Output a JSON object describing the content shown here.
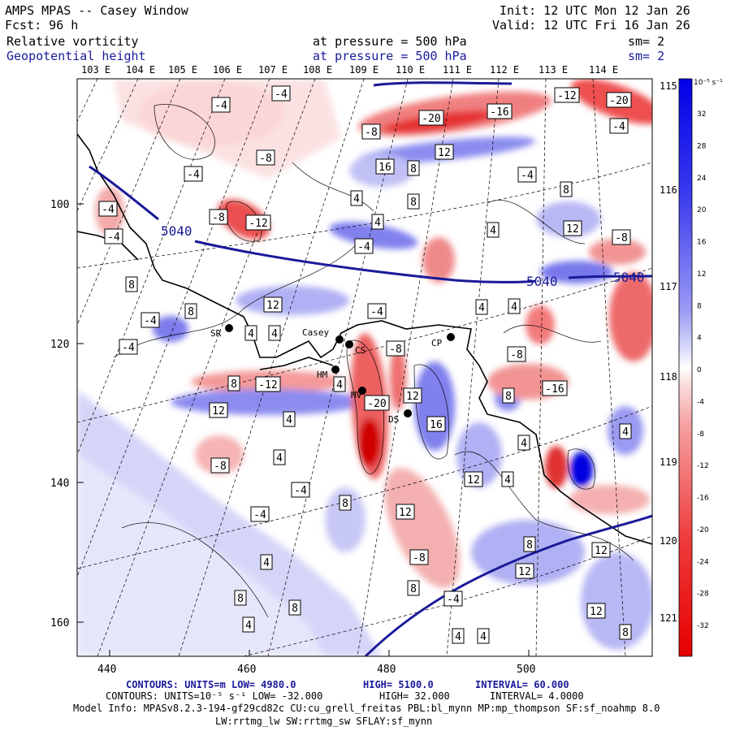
{
  "header": {
    "model_title": "AMPS MPAS -- Casey Window",
    "forecast": "Fcst:    96 h",
    "init": "Init: 12 UTC Mon 12 Jan 26",
    "valid": "Valid: 12 UTC Fri 16 Jan 26",
    "field1": "Relative vorticity",
    "field1_level": "at pressure =  500 hPa",
    "field1_sm": "sm= 2",
    "field2": "Geopotential height",
    "field2_level": "at pressure =  500 hPa",
    "field2_sm": "sm= 2"
  },
  "colors": {
    "height_contour": "#1a1a9a",
    "positive": "#e00000",
    "negative": "#0000e0"
  },
  "top_lon_labels": [
    "103 E",
    "104 E",
    "105 E",
    "106 E",
    "107 E",
    "108 E",
    "109 E",
    "110 E",
    "111 E",
    "112 E",
    "113 E",
    "114 E"
  ],
  "right_lon_labels": [
    "115 E",
    "116 E",
    "117 E",
    "118 E",
    "119 E",
    "120 E",
    "121 E"
  ],
  "left_axis_labels": [
    "100",
    "120",
    "140",
    "160"
  ],
  "bottom_axis_labels": [
    "440",
    "460",
    "480",
    "500"
  ],
  "colorbar": {
    "unit": "10⁻⁵ s⁻¹",
    "ticks": [
      "32",
      "28",
      "24",
      "20",
      "16",
      "12",
      "8",
      "4",
      "0",
      "-4",
      "-8",
      "-12",
      "-16",
      "-20",
      "-24",
      "-28",
      "-32"
    ]
  },
  "height_labels": [
    "5040",
    "5040",
    "5040"
  ],
  "stations": [
    {
      "name": "SR"
    },
    {
      "name": "Casey"
    },
    {
      "name": "CS"
    },
    {
      "name": "CP"
    },
    {
      "name": "HM"
    },
    {
      "name": "MV"
    },
    {
      "name": "DS"
    }
  ],
  "vort_labels": [
    "-4",
    "-4",
    "-20",
    "-16",
    "-12",
    "-20",
    "-4",
    "-8",
    "-8",
    "-4",
    "12",
    "16",
    "8",
    "4",
    "-8",
    "-12",
    "8",
    "4",
    "-4",
    "-4",
    "-4",
    "4",
    "8",
    "12",
    "-8",
    "8",
    "8",
    "-4",
    "-4",
    "4",
    "4",
    "-4",
    "12",
    "4",
    "4",
    "12",
    "4",
    "4",
    "4",
    "-4",
    "-8",
    "-8",
    "-16",
    "-12",
    "8",
    "-20",
    "12",
    "16",
    "8",
    "12",
    "-4",
    "4",
    "-8",
    "4",
    "4",
    "12",
    "-4",
    "8",
    "-8",
    "4",
    "8",
    "12",
    "8",
    "8",
    "12",
    "-4",
    "8",
    "8",
    "12",
    "4",
    "4",
    "4"
  ],
  "footer": {
    "line1_a": "CONTOURS:  UNITS=m  LOW=  4980.0",
    "line1_b": "HIGH=  5100.0",
    "line1_c": "INTERVAL=   60.000",
    "line2_a": "CONTOURS:  UNITS=10⁻⁵ s⁻¹  LOW=  -32.000",
    "line2_b": "HIGH=  32.000",
    "line2_c": "INTERVAL=   4.0000",
    "line3": "Model Info: MPASv8.2.3-194-gf29cd82c CU:cu_grell_freitas PBL:bl_mynn MP:mp_thompson SF:sf_noahmp 8.0",
    "line4": "LW:rrtmg_lw SW:rrtmg_sw SFLAY:sf_mynn"
  }
}
